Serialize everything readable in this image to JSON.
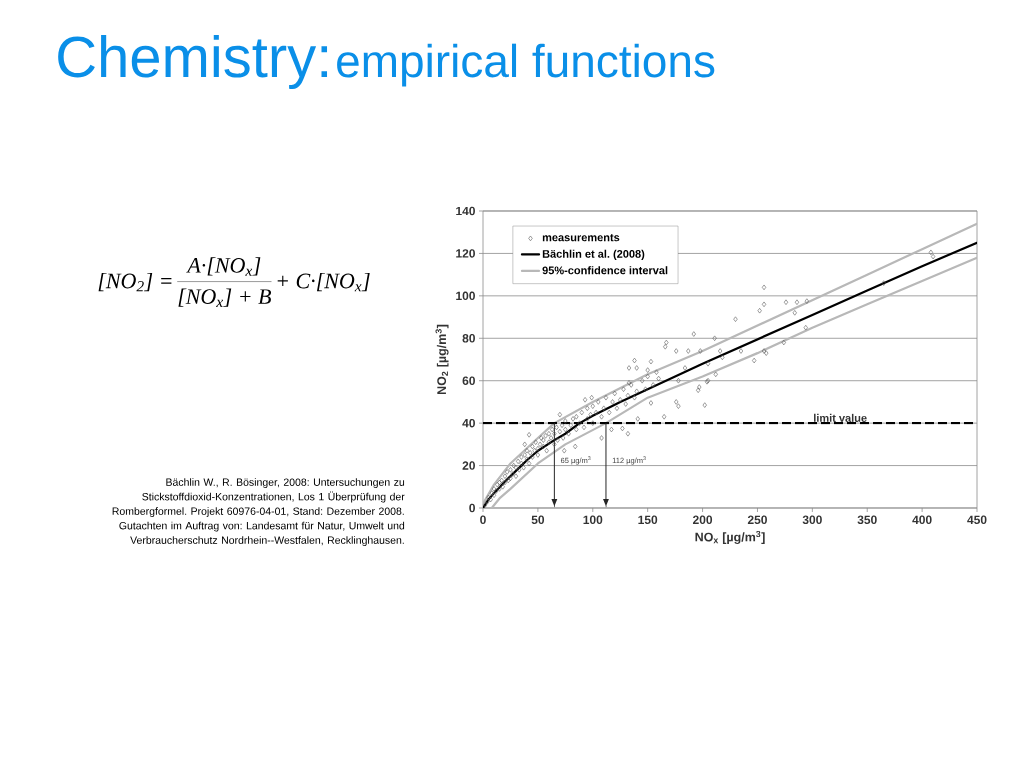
{
  "chart_data": {
    "type": "scatter",
    "title": "Chemistry:",
    "subtitle": "empirical functions",
    "xlabel": "NO$_{x}$ [µg/m$^{3}$]",
    "ylabel": "NO$_{2}$ [µg/m$^{3}$]",
    "xlim": [
      0,
      450
    ],
    "ylim": [
      0,
      140
    ],
    "xticks": [
      0,
      50,
      100,
      150,
      200,
      250,
      300,
      350,
      400,
      450
    ],
    "yticks": [
      0,
      20,
      40,
      60,
      80,
      100,
      120,
      140
    ],
    "grid": "y",
    "legend": "top left",
    "series": [
      {
        "name": "measurements",
        "marker": "diamond",
        "color": "#5a5a5a",
        "x": [
          2,
          4,
          5,
          7,
          8,
          10,
          10,
          12,
          13,
          15,
          15,
          17,
          18,
          20,
          20,
          22,
          23,
          25,
          25,
          27,
          28,
          30,
          30,
          32,
          33,
          35,
          35,
          37,
          38,
          40,
          40,
          42,
          43,
          45,
          45,
          47,
          48,
          50,
          50,
          52,
          53,
          55,
          55,
          57,
          58,
          60,
          60,
          62,
          63,
          65,
          65,
          67,
          68,
          70,
          72,
          73,
          75,
          75,
          78,
          80,
          82,
          85,
          85,
          88,
          90,
          92,
          95,
          95,
          98,
          100,
          100,
          103,
          105,
          108,
          110,
          112,
          115,
          118,
          120,
          122,
          125,
          128,
          130,
          132,
          135,
          138,
          140,
          145,
          148,
          150,
          155,
          158,
          160,
          408,
          410,
          365,
          256,
          256,
          252,
          276,
          286,
          295,
          284,
          294,
          230,
          211,
          274,
          256,
          258,
          235,
          247,
          216,
          218,
          205,
          212,
          204,
          198,
          192,
          167,
          166,
          176,
          138,
          140,
          133,
          153,
          150,
          133,
          187,
          197,
          205,
          178,
          184,
          202,
          165,
          141,
          132,
          127,
          108,
          117,
          196,
          176,
          178,
          153,
          84,
          74,
          99,
          93,
          70,
          38,
          42
        ],
        "values": [
          1.5,
          3,
          5,
          4,
          7,
          6,
          9,
          8,
          11,
          9,
          12,
          13,
          10,
          15,
          12,
          17,
          13,
          18,
          14,
          16,
          20,
          19,
          15,
          22,
          18,
          21,
          24,
          19,
          25,
          23,
          27,
          21,
          26,
          29,
          24,
          27,
          31,
          28,
          25,
          30,
          33,
          29,
          32,
          34,
          27,
          31,
          35,
          33,
          37,
          30,
          35,
          38,
          32,
          36,
          39,
          33,
          37,
          41,
          35,
          39,
          42,
          37,
          43,
          40,
          45,
          38,
          42,
          47,
          44,
          40,
          48,
          45,
          50,
          43,
          47,
          52,
          45,
          50,
          54,
          47,
          51,
          56,
          49,
          53,
          58,
          52,
          55,
          60,
          56,
          62,
          58,
          64,
          61,
          120.5,
          118.5,
          106,
          104,
          96,
          93,
          97,
          97,
          97.5,
          92,
          85,
          89,
          80,
          78,
          74,
          73,
          74,
          69.5,
          74,
          71,
          68,
          63,
          59.5,
          74,
          82,
          78,
          76,
          74,
          69.5,
          66,
          66,
          69,
          65,
          59,
          74,
          57,
          60,
          60,
          66,
          48.5,
          43,
          42,
          35,
          37.5,
          33,
          37,
          55.5,
          50,
          48,
          49.5,
          29,
          27,
          52,
          51,
          44,
          30,
          34.5
        ]
      },
      {
        "name": "Bächlin et al. (2008)",
        "type": "line",
        "color": "#000000",
        "x": [
          0,
          5,
          10,
          20,
          30,
          40,
          50,
          65,
          75,
          88,
          100,
          125,
          150,
          200,
          250,
          300,
          350,
          400,
          450
        ],
        "values": [
          0,
          4,
          7,
          12.5,
          17.5,
          22.5,
          27,
          32,
          35,
          40,
          43.5,
          50,
          56,
          68,
          79.5,
          91,
          102.5,
          114,
          125
        ]
      },
      {
        "name": "95%-confidence interval",
        "type": "line",
        "color": "#b8b8b8",
        "x": [
          0,
          10,
          25,
          50,
          65,
          100,
          150,
          200,
          250,
          300,
          350,
          400,
          450
        ],
        "values": [
          2,
          11,
          21,
          33,
          40,
          50,
          63,
          74,
          86,
          98,
          110,
          122,
          134
        ]
      },
      {
        "type": "line",
        "color": "#b8b8b8",
        "x": [
          8,
          15,
          25,
          50,
          75,
          112,
          150,
          200,
          250,
          300,
          350,
          400,
          450
        ],
        "values": [
          0,
          4.5,
          9,
          21,
          30,
          40,
          52,
          62,
          73,
          85,
          96,
          107,
          118
        ]
      }
    ],
    "ref_lines": [
      {
        "axis": "y",
        "value": 40,
        "label": "limit value",
        "color": "#000000",
        "line_style": "dashed"
      },
      {
        "axis": "x",
        "value": 65,
        "label": "65 µg/m$^{3}$",
        "color": "#262626"
      },
      {
        "axis": "x",
        "value": 112,
        "label": "112 µg/m$^{3}$",
        "color": "#262626"
      }
    ],
    "annotations": [
      "[NO$_{2}$] =",
      "A·[NO$_{x}$]",
      "[NO$_{x}$] + B",
      "+ C·[NO$_{x}$]",
      "Bächlin W., R. Bösinger, 2008: Untersuchungen zu Stickstoffdioxid-Konzentrationen, Los 1 Überprüfung der Rombergformel. Projekt 60976-04-01, Stand: Dezember 2008. Gutachten im Auftrag von: Landesamt für Natur, Umwelt und Verbraucherschutz Nordrhein--Westfalen, Recklinghausen."
    ]
  }
}
